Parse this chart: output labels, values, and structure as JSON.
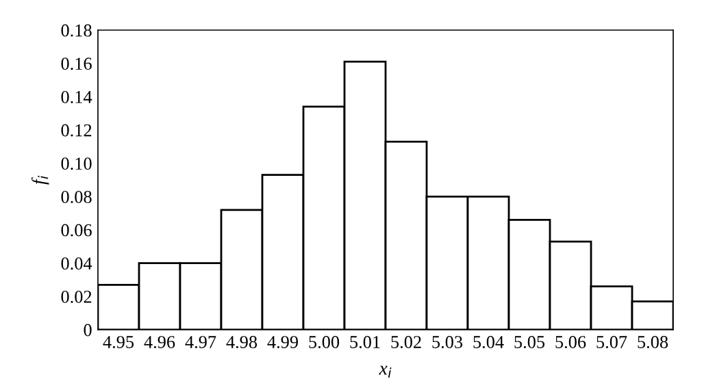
{
  "chart_data": {
    "type": "histogram",
    "xlabel": "x$_{i}$",
    "ylabel": "f$_{i}$",
    "bins": [
      4.945,
      4.955,
      4.965,
      4.975,
      4.985,
      4.995,
      5.005,
      5.015,
      5.025,
      5.035,
      5.045,
      5.055,
      5.065,
      5.075,
      5.085
    ],
    "values": [
      0.027,
      0.04,
      0.04,
      0.072,
      0.093,
      0.134,
      0.161,
      0.113,
      0.08,
      0.08,
      0.066,
      0.053,
      0.026,
      0.017
    ],
    "color": "#ffffff",
    "xlim": [
      4.945,
      5.085
    ],
    "xticks": [
      4.95,
      4.96,
      4.97,
      4.98,
      4.99,
      {
        "value": 5.0,
        "label": "5.00"
      },
      5.01,
      5.02,
      5.03,
      5.04,
      5.05,
      5.06,
      5.07,
      5.08
    ],
    "ylim": [
      0,
      0.18
    ],
    "yticks": [
      0,
      0.02,
      0.04,
      0.06,
      0.08,
      {
        "value": 0.1,
        "label": "0.10"
      },
      0.12,
      0.14,
      0.16,
      0.18
    ],
    "grid": false
  }
}
